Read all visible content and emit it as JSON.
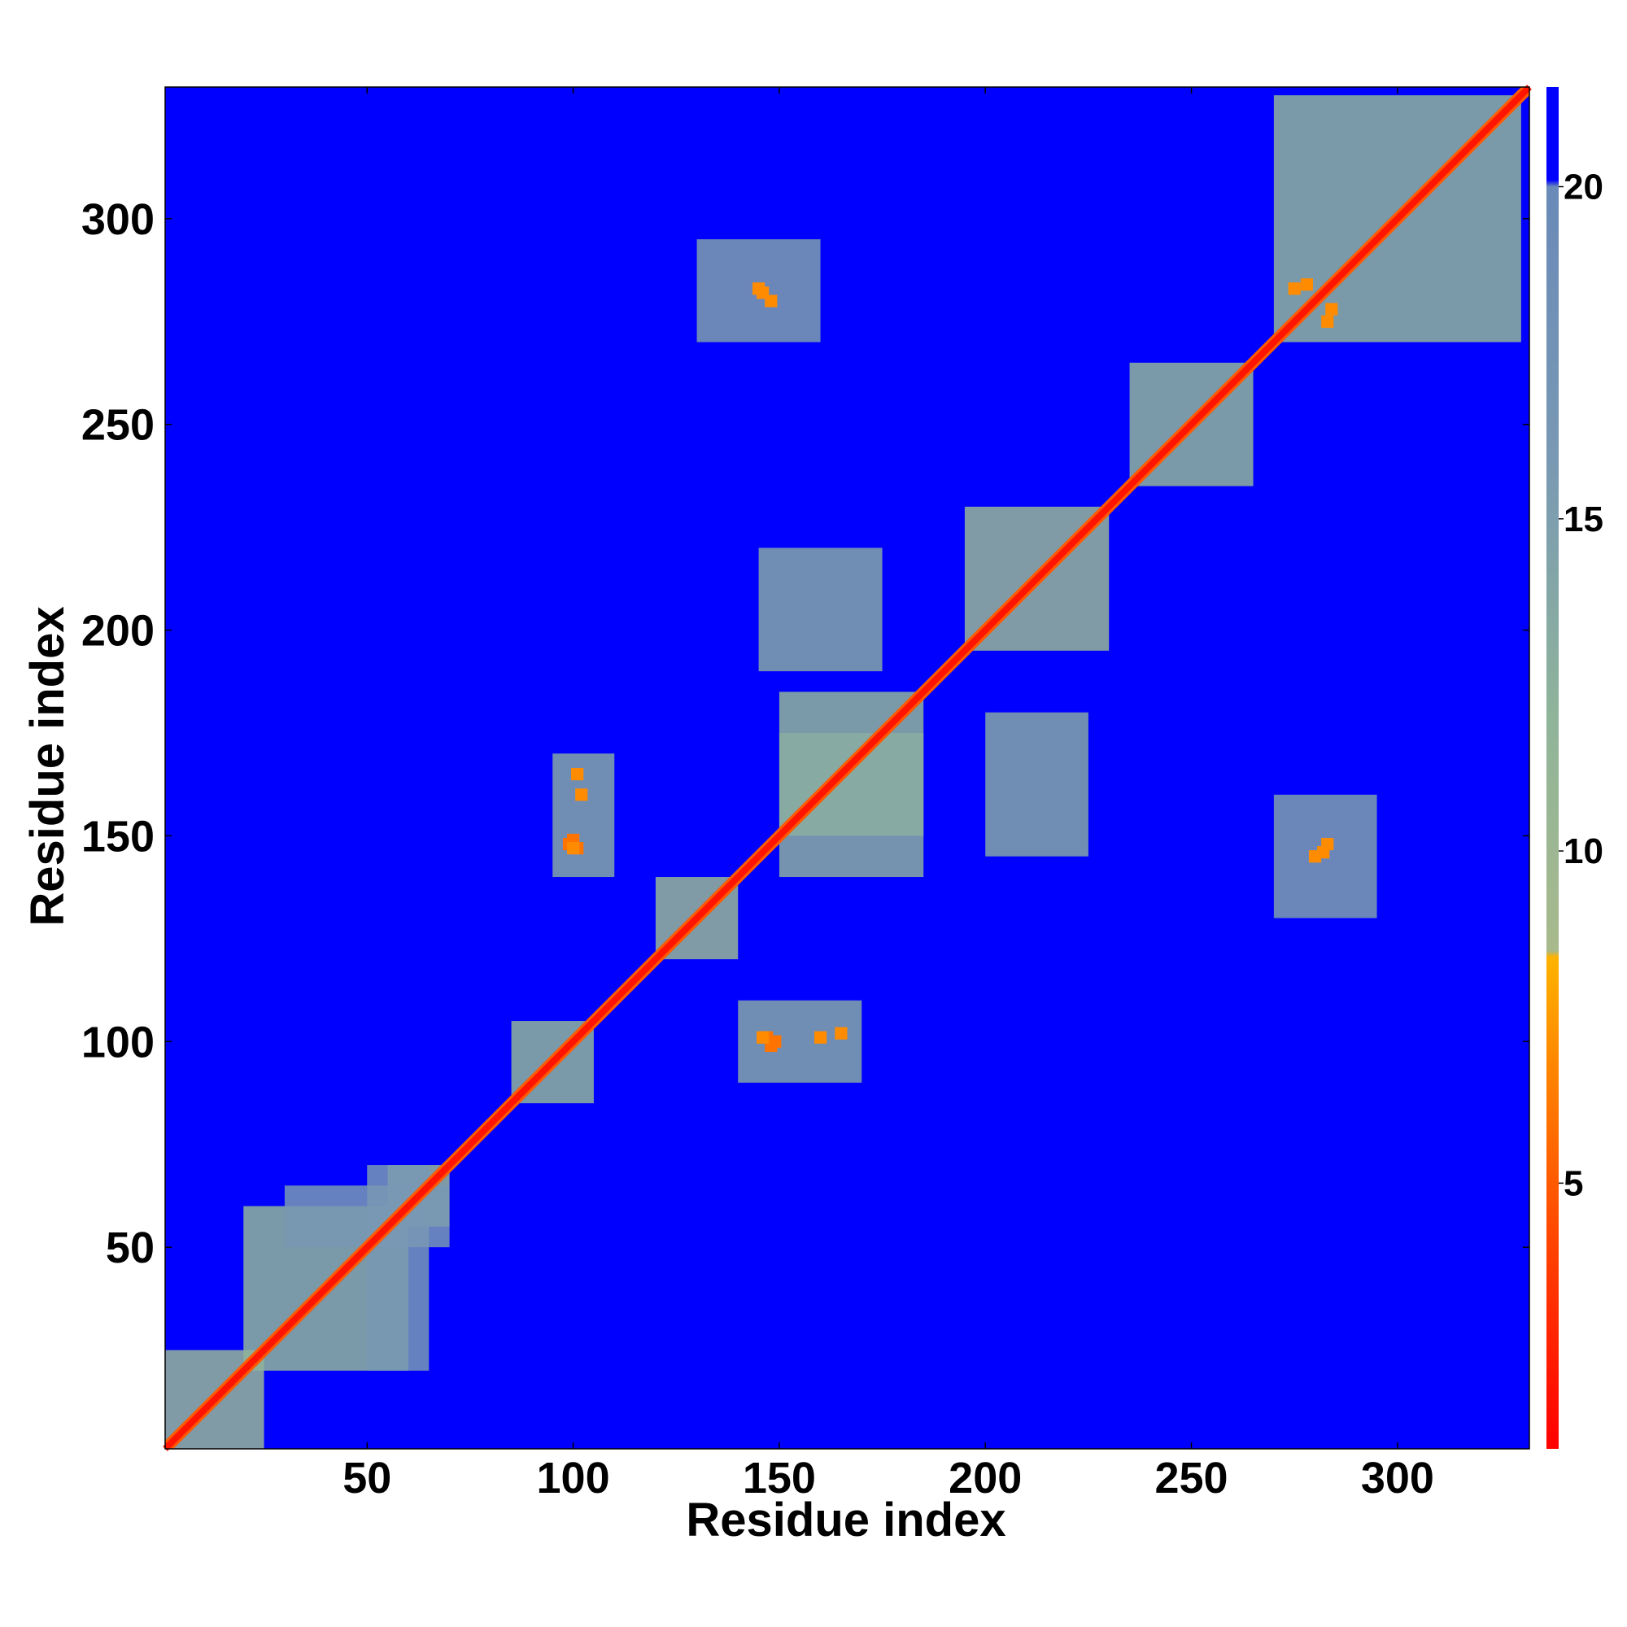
{
  "chart_data": {
    "type": "heatmap",
    "subject": "residue-residue distance map (symmetric)",
    "xlabel": "Residue index",
    "ylabel": "Residue index",
    "xlim": [
      1,
      332
    ],
    "ylim": [
      1,
      332
    ],
    "x_ticks": [
      50,
      100,
      150,
      200,
      250,
      300
    ],
    "y_ticks": [
      50,
      100,
      150,
      200,
      250,
      300
    ],
    "colorbar": {
      "ticks": [
        5,
        10,
        15,
        20
      ],
      "range": [
        1,
        21.5
      ],
      "colors": [
        {
          "value": 1,
          "color": "#ff0000"
        },
        {
          "value": 3,
          "color": "#ff2a00"
        },
        {
          "value": 5,
          "color": "#ff5a00"
        },
        {
          "value": 7,
          "color": "#ff8c00"
        },
        {
          "value": 8.4,
          "color": "#ffb300"
        },
        {
          "value": 8.5,
          "color": "#a8b98c"
        },
        {
          "value": 12,
          "color": "#8fb49a"
        },
        {
          "value": 16,
          "color": "#7898b4"
        },
        {
          "value": 20,
          "color": "#6a8ab8"
        },
        {
          "value": 20.1,
          "color": "#0000ff"
        },
        {
          "value": 21.5,
          "color": "#0000ff"
        }
      ]
    },
    "background_value": 21,
    "diagonal_band": {
      "core_value": 2,
      "halfwidth_residues": 2
    },
    "contact_regions": [
      {
        "i": [
          1,
          25
        ],
        "j": [
          1,
          25
        ],
        "value": 11
      },
      {
        "i": [
          20,
          60
        ],
        "j": [
          20,
          60
        ],
        "value": 12
      },
      {
        "i": [
          55,
          70
        ],
        "j": [
          55,
          70
        ],
        "value": 11
      },
      {
        "i": [
          85,
          105
        ],
        "j": [
          85,
          105
        ],
        "value": 12
      },
      {
        "i": [
          120,
          140
        ],
        "j": [
          120,
          140
        ],
        "value": 11
      },
      {
        "i": [
          150,
          185
        ],
        "j": [
          150,
          185
        ],
        "value": 12
      },
      {
        "i": [
          195,
          230
        ],
        "j": [
          195,
          230
        ],
        "value": 11
      },
      {
        "i": [
          235,
          265
        ],
        "j": [
          235,
          265
        ],
        "value": 12
      },
      {
        "i": [
          270,
          330
        ],
        "j": [
          270,
          330
        ],
        "value": 12
      },
      {
        "i": [
          145,
          175
        ],
        "j": [
          190,
          220
        ],
        "value": 14
      },
      {
        "i": [
          150,
          185
        ],
        "j": [
          140,
          175
        ],
        "value": 13
      },
      {
        "i": [
          140,
          170
        ],
        "j": [
          90,
          110
        ],
        "value": 14
      },
      {
        "i": [
          95,
          110
        ],
        "j": [
          140,
          170
        ],
        "value": 14
      },
      {
        "i": [
          130,
          160
        ],
        "j": [
          270,
          295
        ],
        "value": 15
      },
      {
        "i": [
          270,
          295
        ],
        "j": [
          130,
          160
        ],
        "value": 15
      },
      {
        "i": [
          30,
          70
        ],
        "j": [
          50,
          65
        ],
        "value": 16
      },
      {
        "i": [
          50,
          65
        ],
        "j": [
          20,
          70
        ],
        "value": 16
      },
      {
        "i": [
          200,
          225
        ],
        "j": [
          145,
          180
        ],
        "value": 14
      }
    ],
    "close_contacts": [
      {
        "i": 99,
        "j": 148,
        "value": 6
      },
      {
        "i": 100,
        "j": 149,
        "value": 6
      },
      {
        "i": 101,
        "j": 147,
        "value": 6
      },
      {
        "i": 148,
        "j": 99,
        "value": 6
      },
      {
        "i": 149,
        "j": 100,
        "value": 6
      },
      {
        "i": 147,
        "j": 101,
        "value": 6
      },
      {
        "i": 100,
        "j": 147,
        "value": 7
      },
      {
        "i": 146,
        "j": 101,
        "value": 7
      },
      {
        "i": 160,
        "j": 101,
        "value": 7
      },
      {
        "i": 165,
        "j": 102,
        "value": 7
      },
      {
        "i": 101,
        "j": 165,
        "value": 7
      },
      {
        "i": 102,
        "j": 160,
        "value": 7
      },
      {
        "i": 280,
        "j": 145,
        "value": 7
      },
      {
        "i": 283,
        "j": 148,
        "value": 7
      },
      {
        "i": 145,
        "j": 283,
        "value": 7
      },
      {
        "i": 148,
        "j": 280,
        "value": 7
      },
      {
        "i": 282,
        "j": 146,
        "value": 7
      },
      {
        "i": 146,
        "j": 282,
        "value": 7
      },
      {
        "i": 275,
        "j": 283,
        "value": 7
      },
      {
        "i": 283,
        "j": 275,
        "value": 7
      },
      {
        "i": 278,
        "j": 284,
        "value": 7
      },
      {
        "i": 284,
        "j": 278,
        "value": 7
      }
    ]
  }
}
